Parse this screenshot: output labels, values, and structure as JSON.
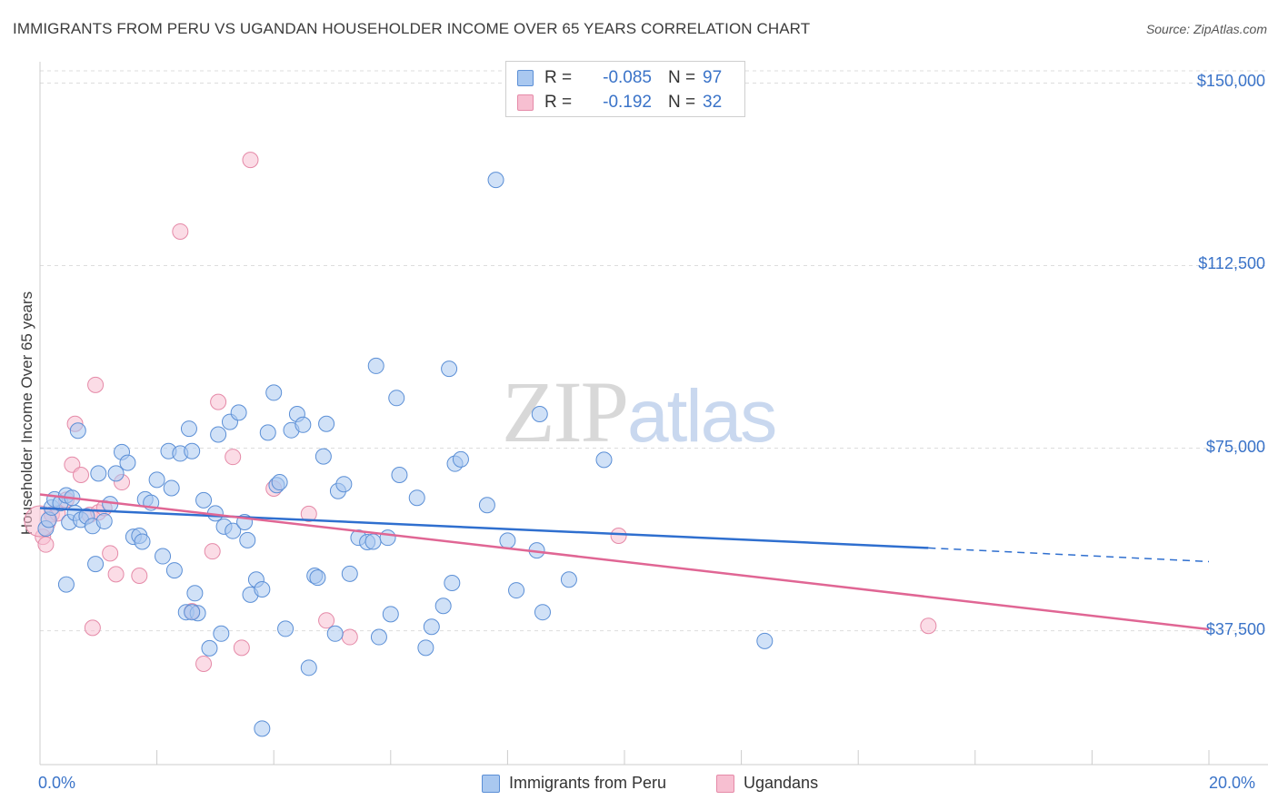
{
  "title": "IMMIGRANTS FROM PERU VS UGANDAN HOUSEHOLDER INCOME OVER 65 YEARS CORRELATION CHART",
  "source": "Source: ZipAtlas.com",
  "watermark": {
    "zip": "ZIP",
    "atlas": "atlas"
  },
  "legend": {
    "r_label": "R =",
    "n_label": "N =",
    "rows": [
      {
        "name": "Immigrants from Peru",
        "r": "-0.085",
        "n": "97"
      },
      {
        "name": "Ugandans",
        "r": "-0.192",
        "n": "32"
      }
    ]
  },
  "colors": {
    "peru_fill": "#a9c8f0",
    "peru_stroke": "#5b8fd6",
    "peru_line": "#2f6fcf",
    "uganda_fill": "#f7bfd1",
    "uganda_stroke": "#e58aa8",
    "uganda_line": "#e06694",
    "tick_text": "#3a73c8",
    "grid": "#dddddd"
  },
  "chart_data": {
    "type": "scatter",
    "title": "IMMIGRANTS FROM PERU VS UGANDAN HOUSEHOLDER INCOME OVER 65 YEARS CORRELATION CHART",
    "xlabel": "",
    "ylabel": "Householder Income Over 65 years",
    "xlim": [
      0,
      20
    ],
    "ylim": [
      10000,
      154000
    ],
    "x_tick_labels": [
      "0.0%",
      "20.0%"
    ],
    "y_ticks": [
      37500,
      75000,
      112500,
      150000
    ],
    "y_tick_labels": [
      "$37,500",
      "$75,000",
      "$112,500",
      "$150,000"
    ],
    "legend_position": "top-center",
    "series": [
      {
        "name": "Immigrants from Peru",
        "trend": {
          "x": [
            0,
            15.2
          ],
          "y": [
            62700,
            54500
          ],
          "dashed_to_x": 20,
          "dashed_end_y": 51700
        },
        "points": [
          [
            0.1,
            58500
          ],
          [
            0.15,
            60300
          ],
          [
            0.2,
            62800
          ],
          [
            0.25,
            64500
          ],
          [
            0.35,
            63700
          ],
          [
            0.45,
            65300
          ],
          [
            0.5,
            59800
          ],
          [
            0.55,
            64800
          ],
          [
            0.6,
            61700
          ],
          [
            0.65,
            78600
          ],
          [
            0.7,
            60300
          ],
          [
            0.8,
            61000
          ],
          [
            0.9,
            59000
          ],
          [
            0.95,
            51200
          ],
          [
            1.0,
            69800
          ],
          [
            1.1,
            60000
          ],
          [
            1.2,
            63500
          ],
          [
            1.3,
            69800
          ],
          [
            1.4,
            74200
          ],
          [
            1.5,
            72000
          ],
          [
            1.6,
            56800
          ],
          [
            1.7,
            57000
          ],
          [
            1.75,
            55800
          ],
          [
            1.8,
            64500
          ],
          [
            1.9,
            63800
          ],
          [
            2.0,
            68500
          ],
          [
            2.1,
            52800
          ],
          [
            2.2,
            74400
          ],
          [
            2.25,
            66800
          ],
          [
            2.3,
            49900
          ],
          [
            2.4,
            73900
          ],
          [
            2.5,
            41300
          ],
          [
            2.55,
            79000
          ],
          [
            2.6,
            74400
          ],
          [
            2.65,
            45200
          ],
          [
            2.7,
            41100
          ],
          [
            2.8,
            64300
          ],
          [
            2.9,
            33900
          ],
          [
            3.0,
            61600
          ],
          [
            3.05,
            77800
          ],
          [
            3.1,
            36900
          ],
          [
            3.15,
            58900
          ],
          [
            3.25,
            80400
          ],
          [
            3.3,
            58000
          ],
          [
            3.4,
            82300
          ],
          [
            3.5,
            59800
          ],
          [
            3.55,
            56100
          ],
          [
            3.6,
            44900
          ],
          [
            3.7,
            48000
          ],
          [
            3.8,
            46000
          ],
          [
            3.9,
            78200
          ],
          [
            4.0,
            86400
          ],
          [
            4.05,
            67400
          ],
          [
            4.1,
            68000
          ],
          [
            4.2,
            37900
          ],
          [
            4.3,
            78700
          ],
          [
            4.4,
            82000
          ],
          [
            4.5,
            79800
          ],
          [
            4.6,
            29900
          ],
          [
            4.7,
            48800
          ],
          [
            4.75,
            48400
          ],
          [
            4.85,
            73300
          ],
          [
            4.9,
            80000
          ],
          [
            5.05,
            36900
          ],
          [
            5.1,
            66200
          ],
          [
            5.2,
            67600
          ],
          [
            5.3,
            49200
          ],
          [
            5.45,
            56600
          ],
          [
            5.6,
            55700
          ],
          [
            5.7,
            55800
          ],
          [
            5.75,
            91900
          ],
          [
            5.8,
            36200
          ],
          [
            5.95,
            56600
          ],
          [
            6.0,
            40900
          ],
          [
            6.1,
            85300
          ],
          [
            6.15,
            69500
          ],
          [
            6.45,
            64800
          ],
          [
            6.6,
            34000
          ],
          [
            6.7,
            38300
          ],
          [
            6.9,
            42600
          ],
          [
            7.0,
            91300
          ],
          [
            7.05,
            47300
          ],
          [
            7.1,
            71800
          ],
          [
            7.2,
            72700
          ],
          [
            7.65,
            63300
          ],
          [
            7.8,
            130100
          ],
          [
            8.0,
            56000
          ],
          [
            8.15,
            45800
          ],
          [
            8.5,
            54000
          ],
          [
            8.55,
            82000
          ],
          [
            8.6,
            41300
          ],
          [
            9.05,
            48000
          ],
          [
            9.65,
            72600
          ],
          [
            12.4,
            35400
          ],
          [
            3.8,
            17400
          ],
          [
            2.6,
            41300
          ],
          [
            0.45,
            47000
          ]
        ]
      },
      {
        "name": "Ugandans",
        "trend": {
          "x": [
            0,
            20
          ],
          "y": [
            65500,
            37800
          ]
        },
        "points": [
          [
            0.05,
            56800
          ],
          [
            0.1,
            55200
          ],
          [
            0.2,
            61400
          ],
          [
            0.3,
            61600
          ],
          [
            0.45,
            64400
          ],
          [
            0.55,
            71600
          ],
          [
            0.6,
            80000
          ],
          [
            0.7,
            69500
          ],
          [
            0.85,
            61300
          ],
          [
            0.9,
            38100
          ],
          [
            0.95,
            88000
          ],
          [
            1.0,
            61800
          ],
          [
            1.1,
            62700
          ],
          [
            1.2,
            53400
          ],
          [
            1.3,
            49100
          ],
          [
            1.4,
            68000
          ],
          [
            1.7,
            48800
          ],
          [
            2.4,
            119500
          ],
          [
            2.6,
            41500
          ],
          [
            2.8,
            30700
          ],
          [
            2.95,
            53800
          ],
          [
            3.05,
            84500
          ],
          [
            3.3,
            73200
          ],
          [
            3.45,
            34000
          ],
          [
            3.6,
            134200
          ],
          [
            4.0,
            66700
          ],
          [
            4.6,
            61500
          ],
          [
            4.9,
            39600
          ],
          [
            5.3,
            36200
          ],
          [
            9.9,
            57000
          ],
          [
            15.2,
            38500
          ],
          [
            0.0,
            60000
          ]
        ]
      }
    ]
  },
  "x_start_label": "0.0%",
  "x_end_label": "20.0%"
}
